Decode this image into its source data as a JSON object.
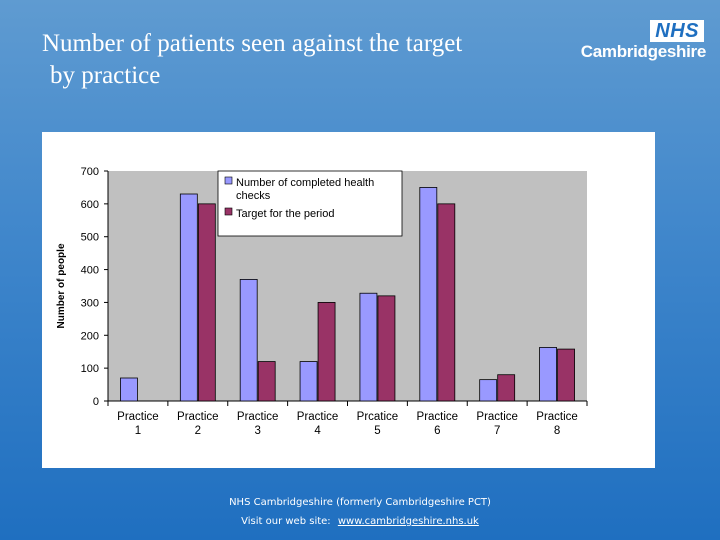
{
  "title": {
    "line1": "Number of patients seen against the target",
    "line2": "by practice"
  },
  "logo": {
    "badge": "NHS",
    "org": "Cambridgeshire"
  },
  "footer": {
    "line1": "NHS Cambridgeshire (formerly Cambridgeshire PCT)",
    "visit_label": "Visit our web site:",
    "url": "www.cambridgeshire.nhs.uk"
  },
  "colors": {
    "background": "#3f86cb",
    "series1": "#9999ff",
    "series2": "#993366",
    "plot_area": "#c0c0c0"
  },
  "chart_data": {
    "type": "bar",
    "title": "",
    "xlabel": "",
    "ylabel": "Number of people",
    "ylim": [
      0,
      700
    ],
    "yticks": [
      0,
      100,
      200,
      300,
      400,
      500,
      600,
      700
    ],
    "categories": [
      [
        "Practice",
        "1"
      ],
      [
        "Practice",
        "2"
      ],
      [
        "Practice",
        "3"
      ],
      [
        "Practice",
        "4"
      ],
      [
        "Prcatice",
        "5"
      ],
      [
        "Practice",
        "6"
      ],
      [
        "Practice",
        "7"
      ],
      [
        "Practice",
        "8"
      ]
    ],
    "series": [
      {
        "name": "Number of completed health checks",
        "legend_lines": [
          "Number of completed health",
          "checks"
        ],
        "color": "#9999ff",
        "values": [
          70,
          630,
          370,
          120,
          328,
          650,
          65,
          163
        ]
      },
      {
        "name": "Target for the period",
        "legend_lines": [
          "Target for the period"
        ],
        "color": "#993366",
        "values": [
          0,
          600,
          120,
          300,
          320,
          600,
          80,
          158
        ]
      }
    ],
    "grid": false,
    "legend": "top-center"
  }
}
